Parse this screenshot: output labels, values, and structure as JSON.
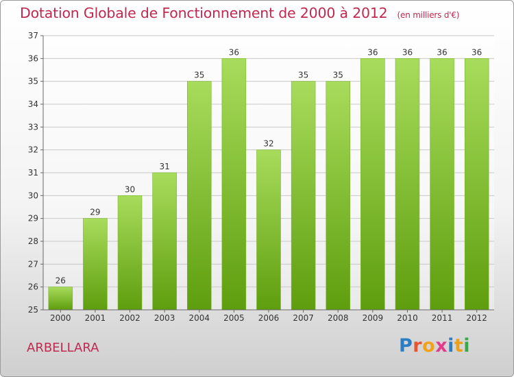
{
  "header": {
    "title": "Dotation Globale de Fonctionnement de 2000 à 2012",
    "unit": "(en milliers d'€)"
  },
  "footer": {
    "commune": "ARBELLARA",
    "logo_text": "Proxiti",
    "logo_colors": [
      "#2b7dc6",
      "#e8542f",
      "#f0a21e",
      "#e23b8c",
      "#2b7dc6",
      "#e8a01e",
      "#3aa84a"
    ]
  },
  "colors": {
    "bar_top": "#a8dc5c",
    "bar_bottom": "#5e9e0e",
    "title": "#c0284f",
    "grid": "#c8c8c8"
  },
  "chart_data": {
    "type": "bar",
    "title": "Dotation Globale de Fonctionnement de 2000 à 2012",
    "subtitle": "(en milliers d'€)",
    "categories": [
      "2000",
      "2001",
      "2002",
      "2003",
      "2004",
      "2005",
      "2006",
      "2007",
      "2008",
      "2009",
      "2010",
      "2011",
      "2012"
    ],
    "values": [
      26,
      29,
      30,
      31,
      35,
      36,
      32,
      35,
      35,
      36,
      36,
      36,
      36
    ],
    "data_labels": [
      "26",
      "29",
      "30",
      "31",
      "35",
      "36",
      "32",
      "35",
      "35",
      "36",
      "36",
      "36",
      "36"
    ],
    "ylim": [
      25,
      37
    ],
    "yticks": [
      25,
      26,
      27,
      28,
      29,
      30,
      31,
      32,
      33,
      34,
      35,
      36,
      37
    ],
    "grid": true,
    "xlabel": "",
    "ylabel": ""
  }
}
